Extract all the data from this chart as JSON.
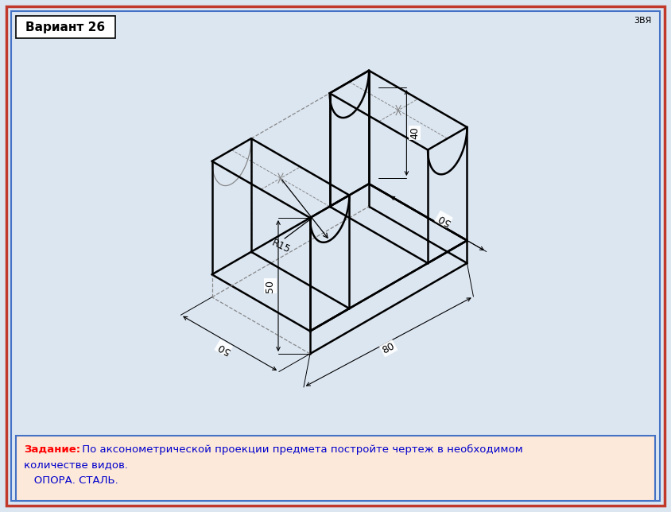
{
  "bg_color": "#dce6f1",
  "drawing_bg": "#ffffff",
  "task_bg": "#fde9d9",
  "border_outer_color": "#c0392b",
  "border_inner_color": "#4472c4",
  "title_text": "Вариант 26",
  "corner_text": "3ВЯ",
  "task_label": "Задание:",
  "task_line1": " По аксонометрической проекции предмета постройте чертеж в необходимом",
  "task_line2": "количестве видов.",
  "task_line3": "   ОПОРА. СТАЛЬ.",
  "task_label_color": "#ff0000",
  "task_text_color": "#0000cd",
  "line_color": "#000000",
  "dim_color": "#000000",
  "dash_color": "#888888",
  "scale": 2.85,
  "ox": 390,
  "oy": 445,
  "BW": 80,
  "BD": 50,
  "BH": 10,
  "LPW": 20,
  "RPW": 20,
  "PH": 50,
  "R": 15
}
